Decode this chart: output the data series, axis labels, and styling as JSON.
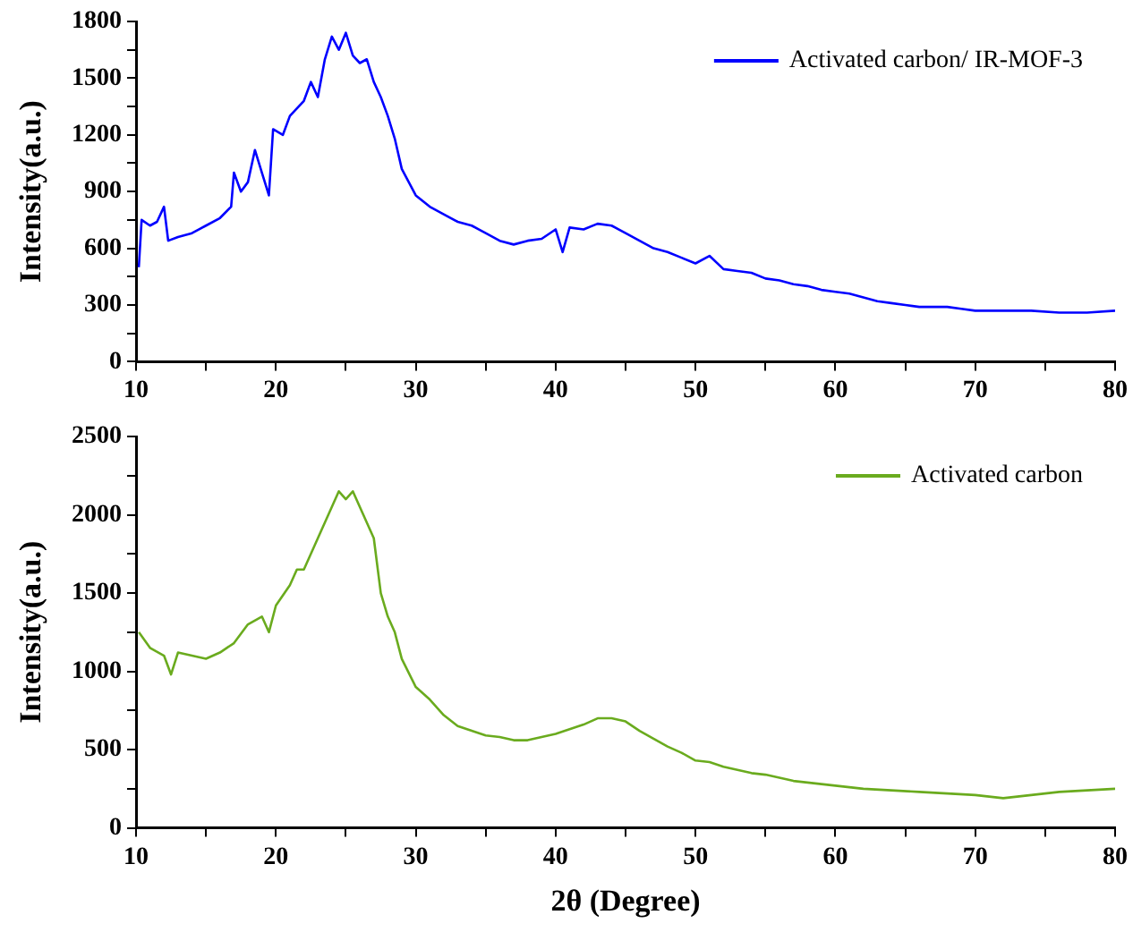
{
  "chart_data": [
    {
      "type": "line",
      "ylabel": "Intensity(a.u.)",
      "legend": "top right",
      "grid": false,
      "marker": "none",
      "line_style": "solid",
      "xlim": [
        10,
        80
      ],
      "xticks": [
        10,
        {
          "value": 15,
          "label": null
        },
        20,
        {
          "value": 25,
          "label": null
        },
        30,
        {
          "value": 35,
          "label": null
        },
        40,
        {
          "value": 45,
          "label": null
        },
        50,
        {
          "value": 55,
          "label": null
        },
        60,
        {
          "value": 65,
          "label": null
        },
        70,
        {
          "value": 75,
          "label": null
        },
        80
      ],
      "ylim": [
        0,
        1800
      ],
      "yticks": [
        0,
        {
          "value": 150,
          "label": null
        },
        300,
        {
          "value": 450,
          "label": null
        },
        600,
        {
          "value": 750,
          "label": null
        },
        900,
        {
          "value": 1050,
          "label": null
        },
        1200,
        {
          "value": 1350,
          "label": null
        },
        1500,
        {
          "value": 1650,
          "label": null
        },
        1800
      ],
      "series": [
        {
          "name": "Activated carbon/ IR-MOF-3",
          "color": "#0000ff",
          "x": [
            10.2,
            10.4,
            11,
            11.5,
            12,
            12.3,
            13,
            14,
            15,
            16,
            16.8,
            17,
            17.5,
            18,
            18.5,
            19,
            19.5,
            19.8,
            20.5,
            21,
            22,
            22.5,
            23,
            23.5,
            24,
            24.5,
            25,
            25.5,
            26,
            26.5,
            27,
            27.5,
            28,
            28.5,
            29,
            29.5,
            30,
            31,
            32,
            33,
            34,
            35,
            36,
            37,
            38,
            39,
            40,
            40.5,
            41,
            42,
            43,
            44,
            45,
            46,
            47,
            48,
            49,
            50,
            51,
            52,
            53,
            54,
            55,
            56,
            57,
            58,
            59,
            60,
            61,
            62,
            63,
            64,
            65,
            66,
            67,
            68,
            69,
            70,
            72,
            74,
            76,
            78,
            80
          ],
          "values": [
            500,
            750,
            720,
            740,
            820,
            640,
            660,
            680,
            720,
            760,
            820,
            1000,
            900,
            950,
            1120,
            1000,
            880,
            1230,
            1200,
            1300,
            1380,
            1480,
            1400,
            1600,
            1720,
            1650,
            1740,
            1620,
            1580,
            1600,
            1480,
            1400,
            1300,
            1180,
            1020,
            950,
            880,
            820,
            780,
            740,
            720,
            680,
            640,
            620,
            640,
            650,
            700,
            580,
            710,
            700,
            730,
            720,
            680,
            640,
            600,
            580,
            550,
            520,
            560,
            490,
            480,
            470,
            440,
            430,
            410,
            400,
            380,
            370,
            360,
            340,
            320,
            310,
            300,
            290,
            290,
            290,
            280,
            270,
            270,
            270,
            260,
            260,
            270
          ]
        }
      ]
    },
    {
      "type": "line",
      "xlabel": "2θ (Degree)",
      "ylabel": "Intensity(a.u.)",
      "legend": "top right",
      "grid": false,
      "marker": "none",
      "line_style": "solid",
      "xlim": [
        10,
        80
      ],
      "xticks": [
        10,
        {
          "value": 15,
          "label": null
        },
        20,
        {
          "value": 25,
          "label": null
        },
        30,
        {
          "value": 35,
          "label": null
        },
        40,
        {
          "value": 45,
          "label": null
        },
        50,
        {
          "value": 55,
          "label": null
        },
        60,
        {
          "value": 65,
          "label": null
        },
        70,
        {
          "value": 75,
          "label": null
        },
        80
      ],
      "ylim": [
        0,
        2500
      ],
      "yticks": [
        0,
        {
          "value": 250,
          "label": null
        },
        500,
        {
          "value": 750,
          "label": null
        },
        1000,
        {
          "value": 1250,
          "label": null
        },
        1500,
        {
          "value": 1750,
          "label": null
        },
        2000,
        {
          "value": 2250,
          "label": null
        },
        2500
      ],
      "series": [
        {
          "name": "Activated carbon",
          "color": "#6aab1e",
          "x": [
            10.2,
            11,
            12,
            12.5,
            13,
            14,
            15,
            16,
            17,
            18,
            19,
            19.5,
            20,
            21,
            21.5,
            22,
            23,
            24,
            24.5,
            25,
            25.5,
            26,
            26.5,
            27,
            27.5,
            28,
            28.5,
            29,
            30,
            31,
            32,
            33,
            34,
            35,
            36,
            37,
            38,
            39,
            40,
            41,
            42,
            43,
            44,
            45,
            46,
            47,
            48,
            49,
            50,
            51,
            52,
            53,
            54,
            55,
            56,
            57,
            58,
            59,
            60,
            62,
            64,
            66,
            68,
            70,
            72,
            74,
            76,
            78,
            80
          ],
          "values": [
            1250,
            1150,
            1100,
            980,
            1120,
            1100,
            1080,
            1120,
            1180,
            1300,
            1350,
            1250,
            1420,
            1550,
            1650,
            1650,
            1850,
            2050,
            2150,
            2100,
            2150,
            2050,
            1950,
            1850,
            1500,
            1350,
            1250,
            1080,
            900,
            820,
            720,
            650,
            620,
            590,
            580,
            560,
            560,
            580,
            600,
            630,
            660,
            700,
            700,
            680,
            620,
            570,
            520,
            480,
            430,
            420,
            390,
            370,
            350,
            340,
            320,
            300,
            290,
            280,
            270,
            250,
            240,
            230,
            220,
            210,
            190,
            210,
            230,
            240,
            250
          ]
        }
      ]
    }
  ]
}
